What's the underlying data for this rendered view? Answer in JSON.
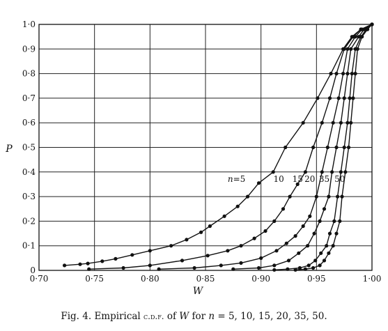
{
  "chart_data": {
    "type": "line",
    "xlabel": "W",
    "ylabel": "P",
    "xlim": [
      0.7,
      1.0
    ],
    "ylim": [
      0,
      1.0
    ],
    "grid": true,
    "x_ticks": [
      "0·70",
      "0·75",
      "0·80",
      "0·85",
      "0·90",
      "0·95",
      "1·00"
    ],
    "y_ticks": [
      "0",
      "0·1",
      "0·2",
      "0·3",
      "0·4",
      "0·5",
      "0·6",
      "0·7",
      "0·8",
      "0·9",
      "1·0"
    ],
    "series": [
      {
        "name": "n=5",
        "points": [
          [
            0.723,
            0.02
          ],
          [
            0.737,
            0.025
          ],
          [
            0.744,
            0.028
          ],
          [
            0.757,
            0.037
          ],
          [
            0.769,
            0.047
          ],
          [
            0.784,
            0.063
          ],
          [
            0.8,
            0.08
          ],
          [
            0.819,
            0.1
          ],
          [
            0.833,
            0.125
          ],
          [
            0.846,
            0.155
          ],
          [
            0.854,
            0.18
          ],
          [
            0.867,
            0.22
          ],
          [
            0.879,
            0.26
          ],
          [
            0.888,
            0.3
          ],
          [
            0.898,
            0.355
          ],
          [
            0.911,
            0.4
          ],
          [
            0.922,
            0.5
          ],
          [
            0.938,
            0.6
          ],
          [
            0.951,
            0.7
          ],
          [
            0.963,
            0.8
          ],
          [
            0.974,
            0.9
          ],
          [
            0.982,
            0.95
          ],
          [
            0.99,
            0.98
          ],
          [
            1.0,
            1.0
          ]
        ]
      },
      {
        "name": "10",
        "points": [
          [
            0.745,
            0.005
          ],
          [
            0.776,
            0.01
          ],
          [
            0.8,
            0.02
          ],
          [
            0.829,
            0.04
          ],
          [
            0.852,
            0.06
          ],
          [
            0.87,
            0.08
          ],
          [
            0.882,
            0.1
          ],
          [
            0.894,
            0.13
          ],
          [
            0.904,
            0.16
          ],
          [
            0.912,
            0.2
          ],
          [
            0.92,
            0.25
          ],
          [
            0.926,
            0.3
          ],
          [
            0.933,
            0.35
          ],
          [
            0.94,
            0.4
          ],
          [
            0.947,
            0.5
          ],
          [
            0.955,
            0.6
          ],
          [
            0.962,
            0.7
          ],
          [
            0.968,
            0.8
          ],
          [
            0.975,
            0.9
          ],
          [
            0.983,
            0.95
          ],
          [
            0.99,
            0.98
          ],
          [
            1.0,
            1.0
          ]
        ]
      },
      {
        "name": "15",
        "points": [
          [
            0.808,
            0.005
          ],
          [
            0.84,
            0.01
          ],
          [
            0.864,
            0.02
          ],
          [
            0.882,
            0.03
          ],
          [
            0.9,
            0.05
          ],
          [
            0.914,
            0.08
          ],
          [
            0.923,
            0.11
          ],
          [
            0.931,
            0.14
          ],
          [
            0.938,
            0.18
          ],
          [
            0.944,
            0.22
          ],
          [
            0.95,
            0.3
          ],
          [
            0.955,
            0.4
          ],
          [
            0.96,
            0.5
          ],
          [
            0.965,
            0.6
          ],
          [
            0.97,
            0.7
          ],
          [
            0.974,
            0.8
          ],
          [
            0.978,
            0.9
          ],
          [
            0.985,
            0.95
          ],
          [
            0.991,
            0.98
          ],
          [
            1.0,
            1.0
          ]
        ]
      },
      {
        "name": "20",
        "points": [
          [
            0.875,
            0.005
          ],
          [
            0.898,
            0.01
          ],
          [
            0.912,
            0.02
          ],
          [
            0.925,
            0.04
          ],
          [
            0.934,
            0.07
          ],
          [
            0.942,
            0.1
          ],
          [
            0.948,
            0.15
          ],
          [
            0.953,
            0.2
          ],
          [
            0.957,
            0.25
          ],
          [
            0.961,
            0.3
          ],
          [
            0.964,
            0.4
          ],
          [
            0.968,
            0.5
          ],
          [
            0.972,
            0.6
          ],
          [
            0.975,
            0.7
          ],
          [
            0.978,
            0.8
          ],
          [
            0.981,
            0.9
          ],
          [
            0.988,
            0.95
          ],
          [
            0.993,
            0.98
          ],
          [
            1.0,
            1.0
          ]
        ]
      },
      {
        "name": "35",
        "points": [
          [
            0.912,
            0.002
          ],
          [
            0.924,
            0.005
          ],
          [
            0.935,
            0.01
          ],
          [
            0.943,
            0.02
          ],
          [
            0.949,
            0.04
          ],
          [
            0.954,
            0.07
          ],
          [
            0.959,
            0.1
          ],
          [
            0.962,
            0.15
          ],
          [
            0.966,
            0.2
          ],
          [
            0.969,
            0.3
          ],
          [
            0.972,
            0.4
          ],
          [
            0.975,
            0.5
          ],
          [
            0.978,
            0.6
          ],
          [
            0.98,
            0.7
          ],
          [
            0.982,
            0.8
          ],
          [
            0.985,
            0.9
          ],
          [
            0.99,
            0.95
          ],
          [
            0.995,
            0.98
          ],
          [
            1.0,
            1.0
          ]
        ]
      },
      {
        "name": "50",
        "points": [
          [
            0.931,
            0.002
          ],
          [
            0.94,
            0.005
          ],
          [
            0.947,
            0.01
          ],
          [
            0.953,
            0.02
          ],
          [
            0.957,
            0.04
          ],
          [
            0.961,
            0.07
          ],
          [
            0.965,
            0.1
          ],
          [
            0.968,
            0.15
          ],
          [
            0.971,
            0.2
          ],
          [
            0.973,
            0.3
          ],
          [
            0.976,
            0.4
          ],
          [
            0.979,
            0.5
          ],
          [
            0.981,
            0.6
          ],
          [
            0.983,
            0.7
          ],
          [
            0.985,
            0.8
          ],
          [
            0.987,
            0.9
          ],
          [
            0.991,
            0.95
          ],
          [
            0.996,
            0.98
          ],
          [
            1.0,
            1.0
          ]
        ]
      }
    ],
    "caption": {
      "prefix": "Fig. 4.  Empirical ",
      "cdf": "c.d.f.",
      "of": " of ",
      "var": "W",
      "for": " for ",
      "n": "n",
      "rest": " = 5, 10, 15, 20, 35, 50."
    }
  }
}
